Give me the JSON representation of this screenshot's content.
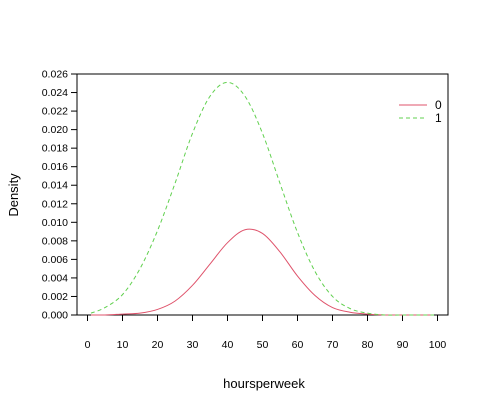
{
  "chart_data": {
    "type": "line",
    "title": "",
    "xlabel": "hoursperweek",
    "ylabel": "Density",
    "xlim": [
      -3,
      103
    ],
    "ylim": [
      0,
      0.026
    ],
    "x_ticks": [
      0,
      10,
      20,
      30,
      40,
      50,
      60,
      70,
      80,
      90,
      100
    ],
    "y_ticks": [
      0.0,
      0.002,
      0.004,
      0.006,
      0.008,
      0.01,
      0.012,
      0.014,
      0.016,
      0.018,
      0.02,
      0.022,
      0.024,
      0.026
    ],
    "x_tick_labels": [
      "0",
      "10",
      "20",
      "30",
      "40",
      "50",
      "60",
      "70",
      "80",
      "90",
      "100"
    ],
    "y_tick_labels": [
      "0.000",
      "0.002",
      "0.004",
      "0.006",
      "0.008",
      "0.010",
      "0.012",
      "0.014",
      "0.016",
      "0.018",
      "0.020",
      "0.022",
      "0.024",
      "0.026"
    ],
    "grid": false,
    "legend_position": "top-right",
    "x": [
      1,
      5,
      10,
      15,
      20,
      25,
      30,
      35,
      40,
      45,
      50,
      55,
      60,
      65,
      70,
      75,
      80,
      85,
      90,
      95,
      99
    ],
    "series": [
      {
        "name": "0",
        "color": "#DF536B",
        "dash": "solid",
        "values": [
          0.0,
          0.0,
          0.0001,
          0.0002,
          0.0006,
          0.0015,
          0.0032,
          0.0055,
          0.0078,
          0.0092,
          0.0088,
          0.0068,
          0.0042,
          0.0021,
          0.0008,
          0.0003,
          0.0001,
          0.0,
          0.0,
          0.0,
          0.0
        ]
      },
      {
        "name": "1",
        "color": "#61D04F",
        "dash": "dashed",
        "values": [
          0.0002,
          0.0008,
          0.0022,
          0.005,
          0.0091,
          0.0142,
          0.0196,
          0.0236,
          0.0251,
          0.0236,
          0.0196,
          0.0142,
          0.0089,
          0.0047,
          0.002,
          0.0007,
          0.0002,
          0.0,
          0.0,
          0.0,
          0.0
        ]
      }
    ]
  }
}
